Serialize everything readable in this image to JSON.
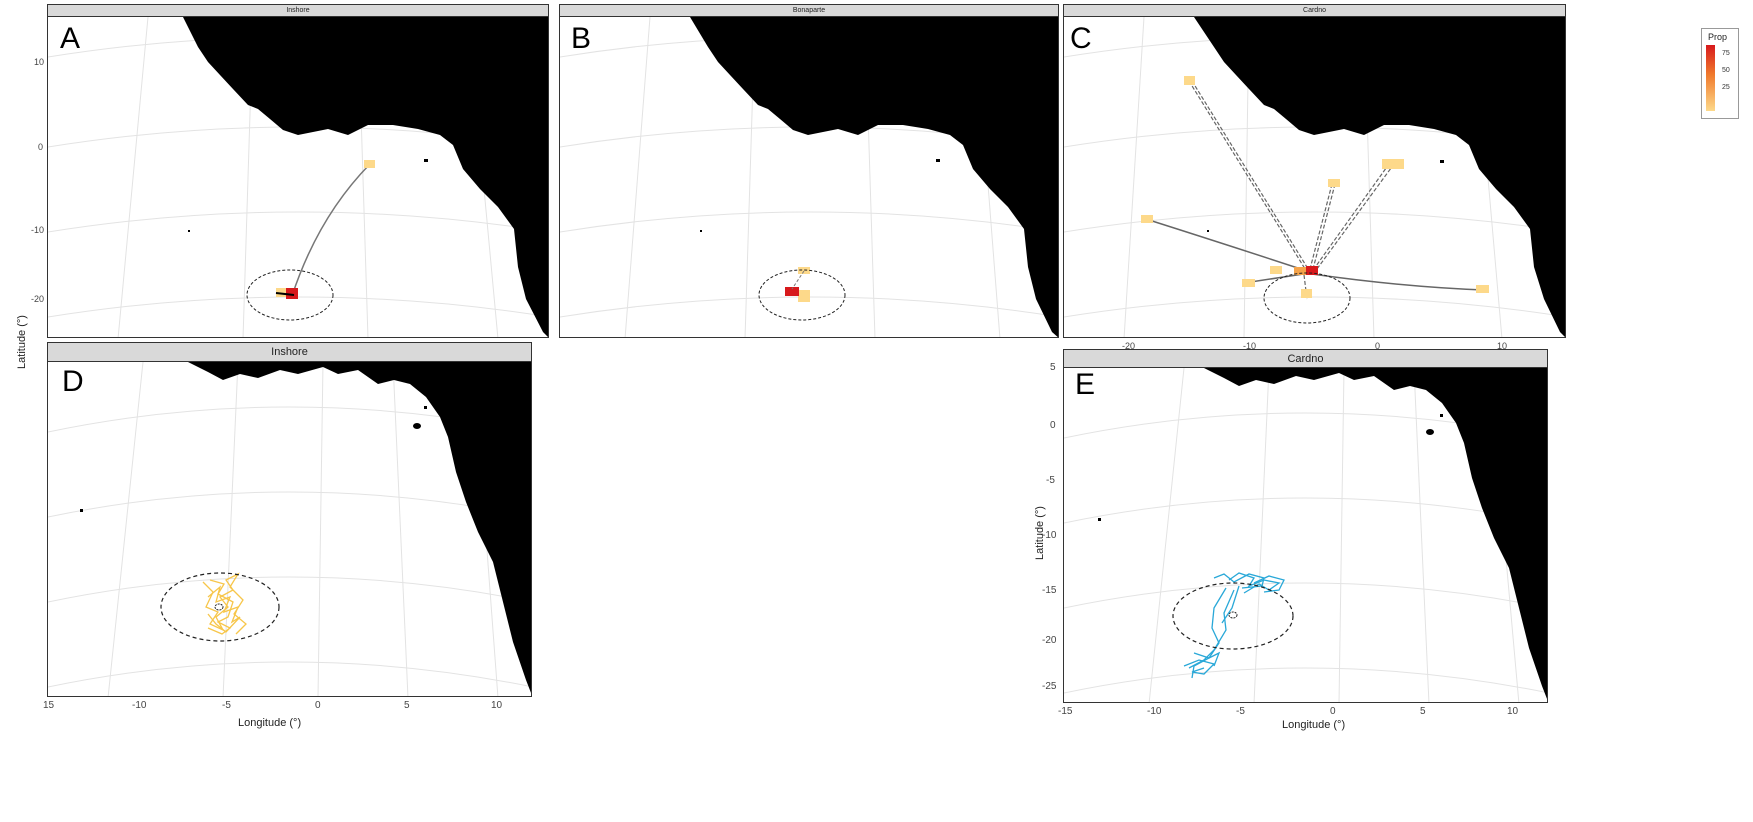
{
  "panels": {
    "A": {
      "label": "A",
      "strip": "Inshore"
    },
    "B": {
      "label": "B",
      "strip": "Bonaparte"
    },
    "C": {
      "label": "C",
      "strip": "Cardno"
    },
    "D": {
      "label": "D",
      "strip": "Inshore"
    },
    "E": {
      "label": "E",
      "strip": "Cardno"
    }
  },
  "axes": {
    "top_y_ticks": [
      "10",
      "0",
      "-10",
      "-20"
    ],
    "c_x_ticks": [
      "-20",
      "-10",
      "0",
      "10"
    ],
    "d_x_ticks": [
      "15",
      "-10",
      "-5",
      "0",
      "5",
      "10"
    ],
    "e_x_ticks": [
      "-15",
      "-10",
      "-5",
      "0",
      "5",
      "10"
    ],
    "e_y_ticks": [
      "5",
      "0",
      "-5",
      "-10",
      "-15",
      "-20",
      "-25"
    ],
    "y_title": "Latitude (°)",
    "x_title": "Longitude (°)"
  },
  "legend": {
    "title": "Prop",
    "labels": [
      "75",
      "50",
      "25"
    ]
  },
  "colors": {
    "land": "#000000",
    "graticule": "#e3e3e3",
    "high": "#d7191c",
    "low": "#fdd98a",
    "inshore_track": "#f7c64a",
    "cardno_track": "#29a8d8"
  }
}
